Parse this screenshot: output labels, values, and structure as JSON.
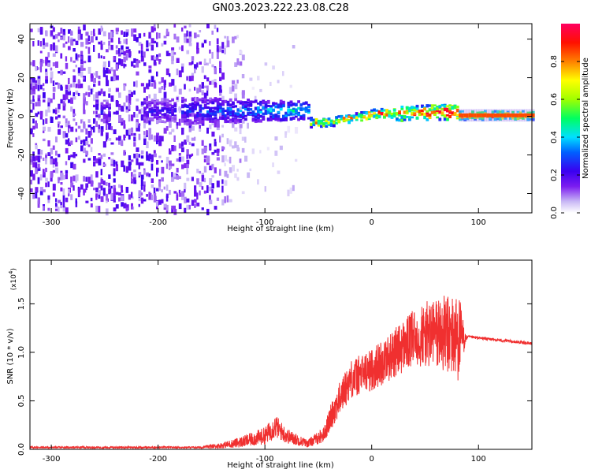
{
  "title": "GN03.2023.222.23.08.C28",
  "chart_data": [
    {
      "type": "heatmap",
      "xlabel": "Height of straight line (km)",
      "ylabel": "Frequency (Hz)",
      "xlim": [
        -320,
        150
      ],
      "ylim": [
        -50,
        48
      ],
      "xticks": [
        -300,
        -200,
        -100,
        0,
        100
      ],
      "yticks": [
        -40,
        -20,
        0,
        20,
        40
      ],
      "colorbar": {
        "label": "Normalized spectral amplitude",
        "range": [
          0,
          1
        ],
        "ticks": [
          "0.0",
          "0.2",
          "0.4",
          "0.6",
          "0.8"
        ],
        "tick_values": [
          0,
          0.2,
          0.4,
          0.6,
          0.8
        ],
        "colors": [
          "#ffffff",
          "#c9b8f5",
          "#7b1cf0",
          "#3a00f0",
          "#0060ff",
          "#00e0ff",
          "#00ff60",
          "#a0ff00",
          "#ffff00",
          "#ff8000",
          "#ff1000",
          "#ff0060"
        ]
      },
      "regions": [
        {
          "x": [
            -320,
            -140
          ],
          "freq_spread": 48,
          "amplitude": 0.12,
          "description": "broadband noise"
        },
        {
          "x": [
            -180,
            -60
          ],
          "freq_spread": 8,
          "amplitude": 0.3
        },
        {
          "x": [
            -60,
            80
          ],
          "freq_center": 2,
          "amplitude": 0.75
        },
        {
          "x": [
            80,
            150
          ],
          "freq_center": 1,
          "amplitude": 0.9
        }
      ]
    },
    {
      "type": "line",
      "xlabel": "Height of straight line (km)",
      "ylabel": "SNR (10 * v/v)",
      "y_multiplier": "(x10",
      "y_multiplier_exp": "4",
      "y_multiplier_close": ")",
      "xlim": [
        -320,
        150
      ],
      "ylim": [
        0,
        1.95
      ],
      "xticks": [
        -300,
        -200,
        -100,
        0,
        100
      ],
      "yticks": [
        0.0,
        0.5,
        1.0,
        1.5
      ],
      "ytick_labels": [
        "0.0",
        "0.5",
        "1.0",
        "1.5"
      ],
      "color": "#f03030",
      "profile": [
        {
          "x": -320,
          "mean": 0.02,
          "noise": 0.01
        },
        {
          "x": -160,
          "mean": 0.02,
          "noise": 0.01
        },
        {
          "x": -140,
          "mean": 0.04,
          "noise": 0.03
        },
        {
          "x": -120,
          "mean": 0.08,
          "noise": 0.06
        },
        {
          "x": -100,
          "mean": 0.14,
          "noise": 0.09
        },
        {
          "x": -90,
          "mean": 0.24,
          "noise": 0.12
        },
        {
          "x": -80,
          "mean": 0.14,
          "noise": 0.08
        },
        {
          "x": -60,
          "mean": 0.06,
          "noise": 0.04
        },
        {
          "x": -45,
          "mean": 0.15,
          "noise": 0.08
        },
        {
          "x": -35,
          "mean": 0.42,
          "noise": 0.16
        },
        {
          "x": -20,
          "mean": 0.72,
          "noise": 0.2
        },
        {
          "x": 0,
          "mean": 0.82,
          "noise": 0.22
        },
        {
          "x": 20,
          "mean": 0.98,
          "noise": 0.25
        },
        {
          "x": 40,
          "mean": 1.15,
          "noise": 0.3
        },
        {
          "x": 60,
          "mean": 1.2,
          "noise": 0.38
        },
        {
          "x": 82,
          "mean": 1.15,
          "noise": 0.45
        },
        {
          "x": 88,
          "mean": 1.14,
          "noise": 0.04
        },
        {
          "x": 90,
          "mean": 1.16,
          "noise": 0.015
        },
        {
          "x": 150,
          "mean": 1.09,
          "noise": 0.015
        }
      ]
    }
  ]
}
